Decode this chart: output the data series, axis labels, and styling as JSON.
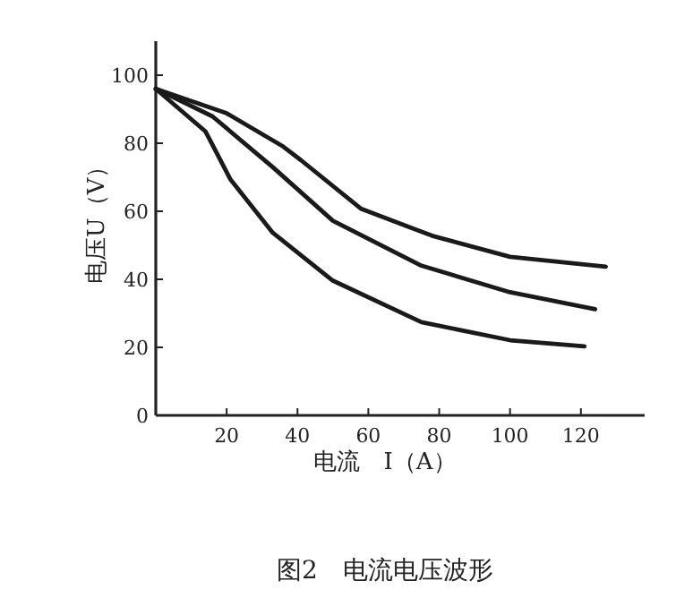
{
  "chart_data": {
    "type": "line",
    "title": "图2　电流电压波形",
    "xlabel": "电流　I（A）",
    "ylabel": "电压U（V）",
    "xlim": [
      0,
      138
    ],
    "ylim": [
      0,
      110
    ],
    "xticks": [
      20,
      40,
      60,
      80,
      100,
      120
    ],
    "yticks": [
      0,
      20,
      40,
      60,
      80,
      100
    ],
    "series": [
      {
        "color": "#1a1a1a",
        "x": [
          0,
          20,
          36,
          41,
          58,
          78,
          100,
          127
        ],
        "values": [
          96,
          88.8,
          79,
          75,
          60.7,
          52.8,
          46.6,
          43.7
        ]
      },
      {
        "color": "#1a1a1a",
        "x": [
          0,
          16,
          33,
          50,
          75,
          100,
          124
        ],
        "values": [
          96,
          87.9,
          73,
          57.2,
          44,
          36.2,
          31.2
        ]
      },
      {
        "color": "#1a1a1a",
        "x": [
          0,
          14,
          21,
          33,
          50,
          75,
          100,
          121
        ],
        "values": [
          96,
          83.5,
          69.5,
          53.7,
          39.6,
          27.4,
          22.1,
          20.3
        ]
      }
    ]
  }
}
